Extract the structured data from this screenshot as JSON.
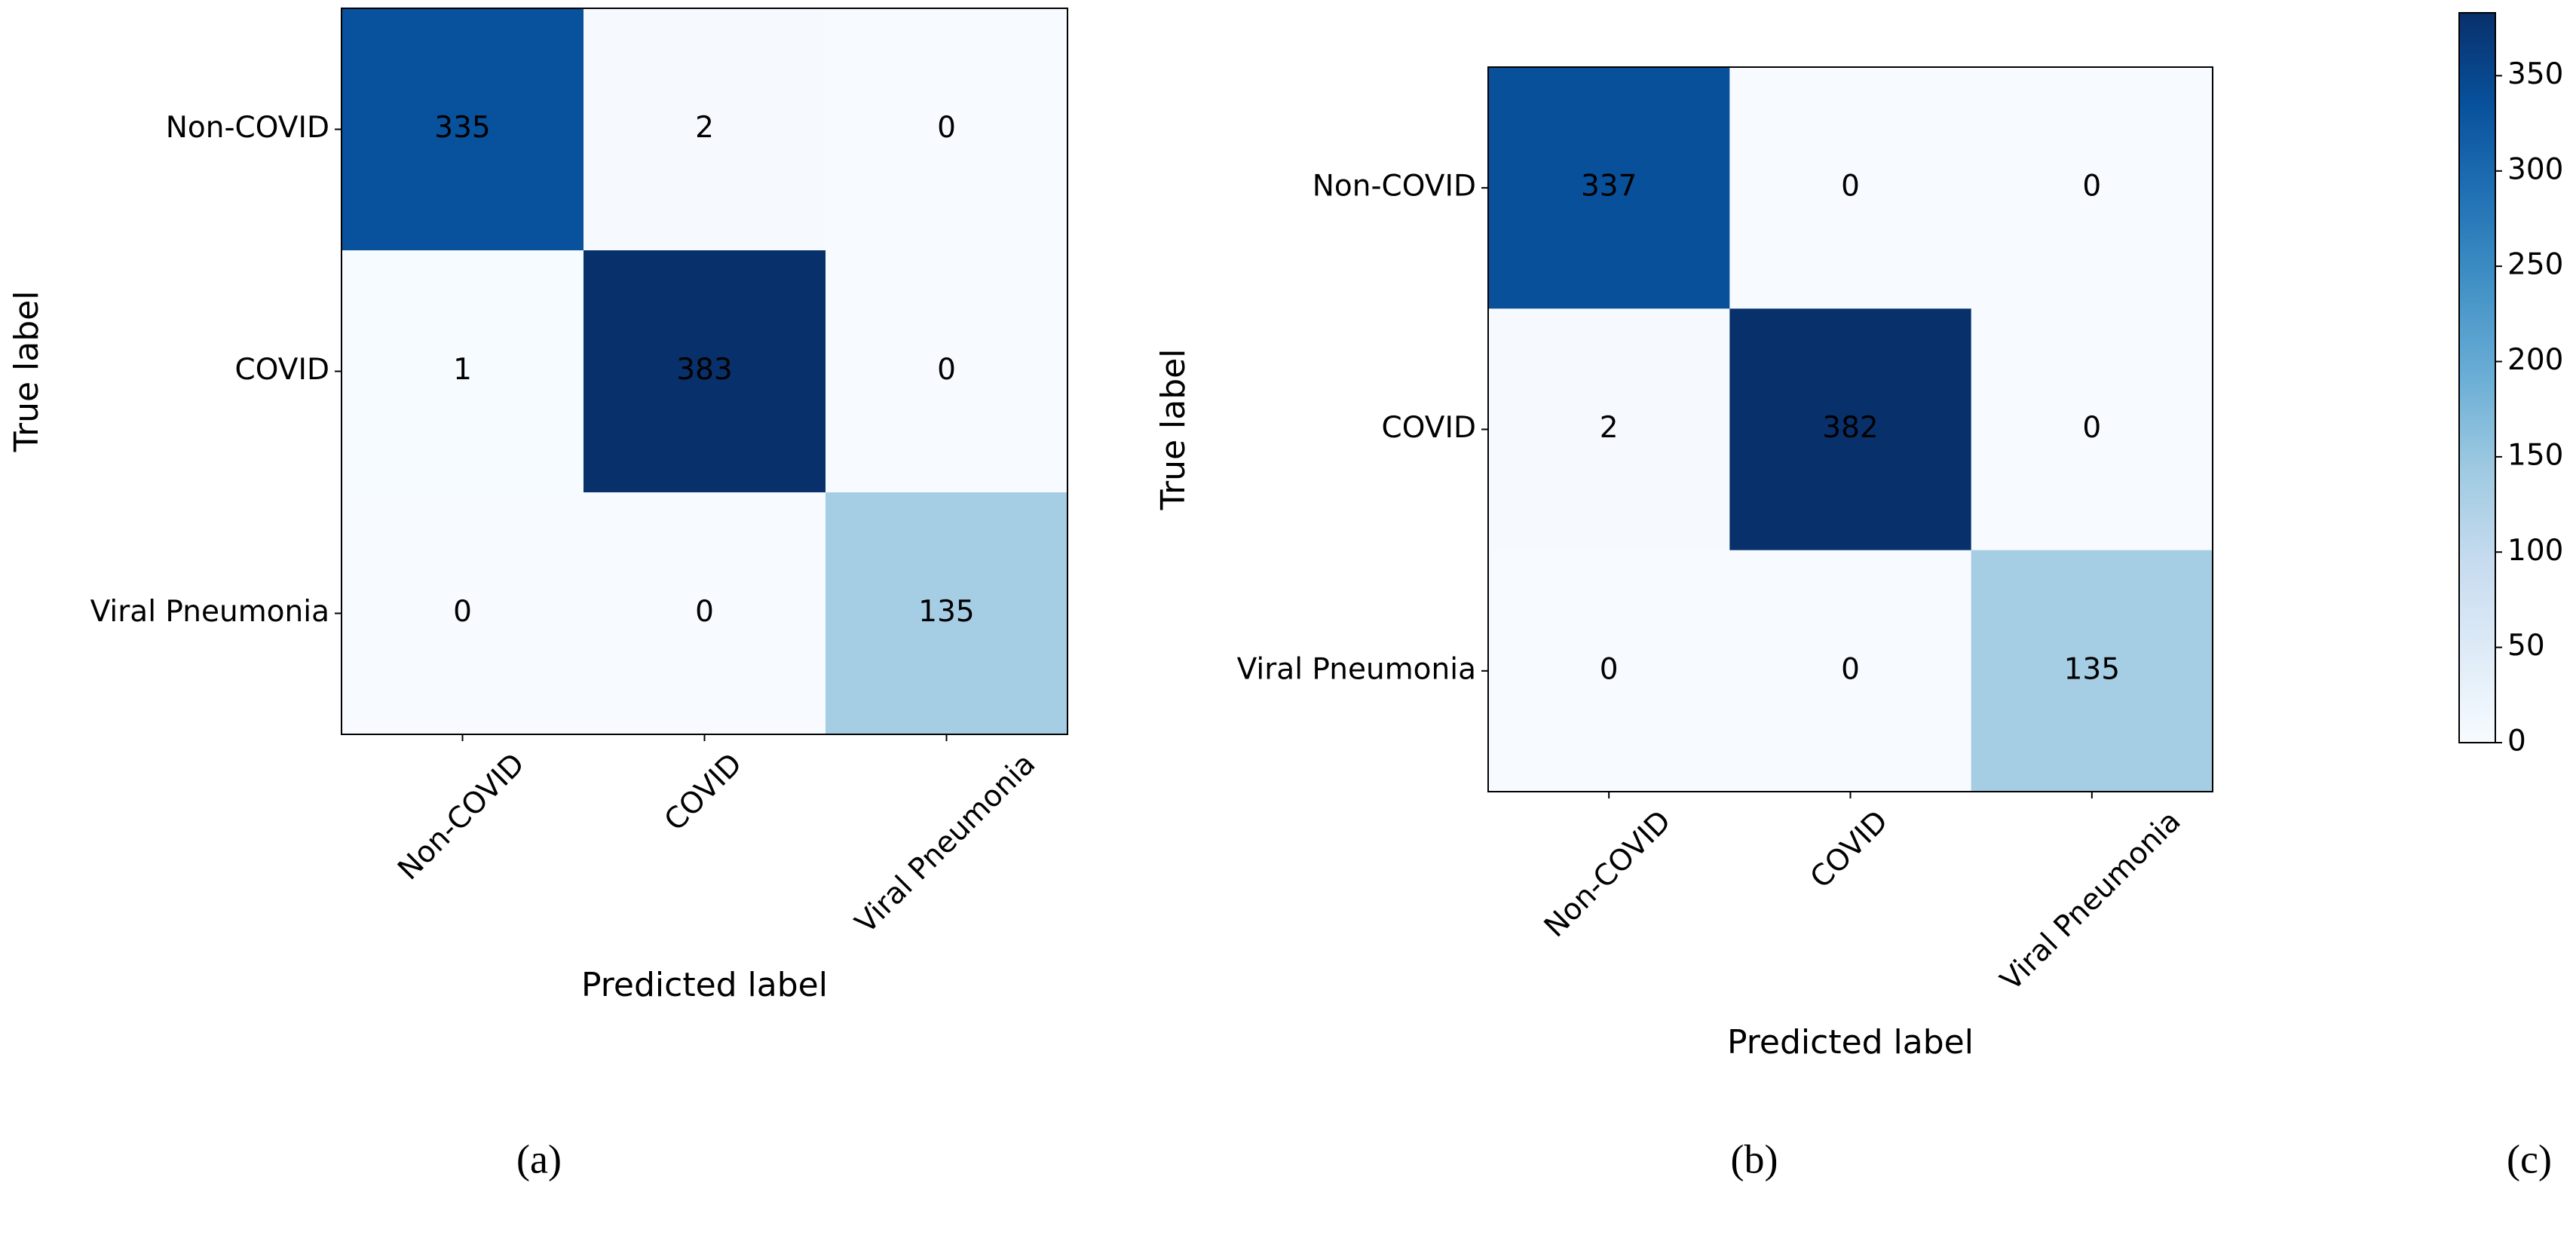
{
  "chart_data": [
    {
      "type": "heatmap",
      "caption": "(a)",
      "x_categories": [
        "Non-COVID",
        "COVID",
        "Viral Pneumonia"
      ],
      "y_categories": [
        "Non-COVID",
        "COVID",
        "Viral Pneumonia"
      ],
      "values": [
        [
          335,
          2,
          0
        ],
        [
          1,
          383,
          0
        ],
        [
          0,
          0,
          135
        ]
      ],
      "xlabel": "Predicted label",
      "ylabel": "True label",
      "clim": [
        0,
        383
      ],
      "colormap": [
        "#f7fbff",
        "#deebf7",
        "#c6dbef",
        "#9ecae1",
        "#6baed6",
        "#4292c6",
        "#2171b5",
        "#08519c",
        "#08306b"
      ]
    },
    {
      "type": "heatmap",
      "caption": "(b)",
      "x_categories": [
        "Non-COVID",
        "COVID",
        "Viral Pneumonia"
      ],
      "y_categories": [
        "Non-COVID",
        "COVID",
        "Viral Pneumonia"
      ],
      "values": [
        [
          337,
          0,
          0
        ],
        [
          2,
          382,
          0
        ],
        [
          0,
          0,
          135
        ]
      ],
      "xlabel": "Predicted label",
      "ylabel": "True label",
      "clim": [
        0,
        383
      ],
      "colormap": [
        "#f7fbff",
        "#deebf7",
        "#c6dbef",
        "#9ecae1",
        "#6baed6",
        "#4292c6",
        "#2171b5",
        "#08519c",
        "#08306b"
      ]
    },
    {
      "type": "colorbar",
      "caption": "(c)",
      "ylim": [
        0,
        383
      ],
      "yticks": [
        0,
        50,
        100,
        150,
        200,
        250,
        300,
        350
      ],
      "colormap": [
        "#f7fbff",
        "#deebf7",
        "#c6dbef",
        "#9ecae1",
        "#6baed6",
        "#4292c6",
        "#2171b5",
        "#08519c",
        "#08306b"
      ]
    }
  ]
}
